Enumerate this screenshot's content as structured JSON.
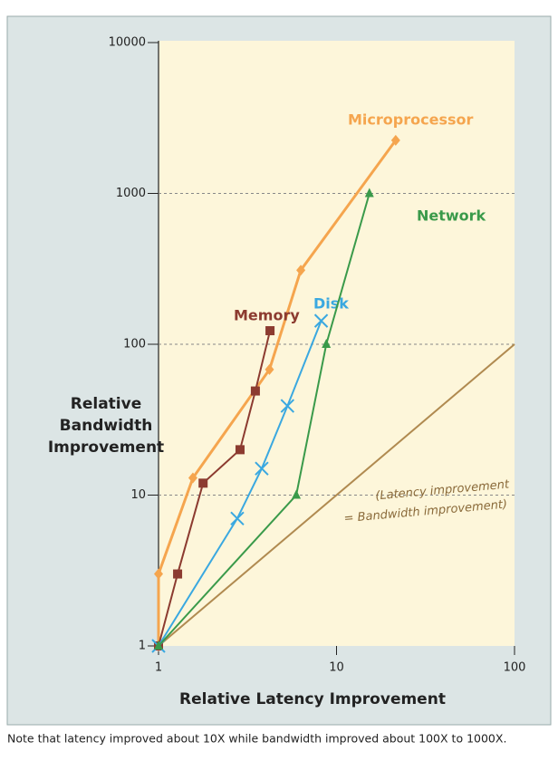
{
  "chart_data": {
    "type": "line",
    "log_x": true,
    "log_y": true,
    "grid": true,
    "xlabel": "Relative Latency Improvement",
    "ylabel_lines": [
      "Relative",
      "Bandwidth",
      "Improvement"
    ],
    "caption": "Note that latency improved about 10X while bandwidth improved about 100X to 1000X.",
    "xlim": [
      1,
      100
    ],
    "xticks": [
      1,
      10,
      100
    ],
    "ylim": [
      1,
      10000
    ],
    "yticks": [
      1,
      10,
      100,
      1000,
      10000
    ],
    "series": [
      {
        "name": "Microprocessor",
        "color": "#f5a54e",
        "marker": "diamond",
        "x": [
          1,
          1,
          1.56,
          4.2,
          6.3,
          21.5
        ],
        "values": [
          1,
          3,
          13,
          68,
          310,
          2250
        ]
      },
      {
        "name": "Memory",
        "color": "#8c3b30",
        "marker": "square",
        "x": [
          1,
          1.28,
          1.78,
          2.87,
          3.5,
          4.23
        ],
        "values": [
          1,
          3,
          12,
          20,
          49,
          123
        ]
      },
      {
        "name": "Disk",
        "color": "#3aa8e0",
        "marker": "x",
        "x": [
          1,
          2.77,
          3.8,
          5.3,
          8.2
        ],
        "values": [
          1,
          7,
          15,
          39,
          143
        ]
      },
      {
        "name": "Network",
        "color": "#3a9a4a",
        "marker": "triangle",
        "x": [
          1,
          5.94,
          8.76,
          15.3
        ],
        "values": [
          1,
          10,
          100,
          1000
        ]
      }
    ],
    "reference_line": {
      "color": "#b08a50",
      "x": [
        1,
        100
      ],
      "y": [
        1,
        100
      ],
      "label_lines": [
        "(Latency improvement",
        "= Bandwidth improvement)"
      ]
    }
  }
}
